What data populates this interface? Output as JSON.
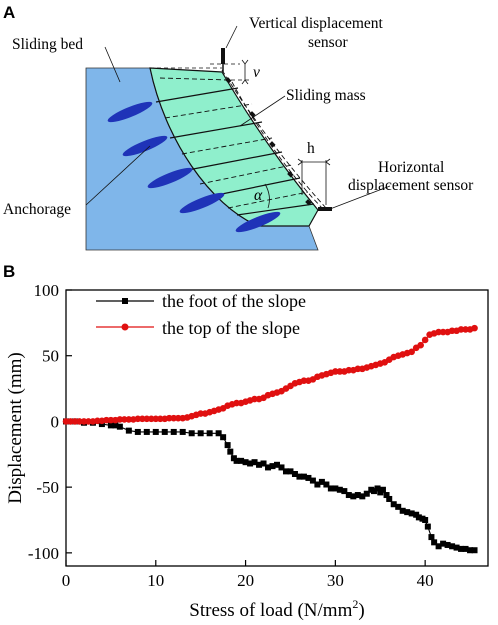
{
  "panel_a": {
    "letter": "A",
    "labels": {
      "sliding_bed": "Sliding bed",
      "vertical_sensor_line1": "Vertical displacement",
      "vertical_sensor_line2": "sensor",
      "v": "v",
      "sliding_mass": "Sliding mass",
      "h": "h",
      "horizontal_sensor_line1": "Horizontal",
      "horizontal_sensor_line2": "displacement sensor",
      "anchorage": "Anchorage",
      "alpha": "α"
    },
    "colors": {
      "bed": "#7fb6ea",
      "mass": "#8fefcc",
      "anchor": "#1f33b8"
    }
  },
  "panel_b": {
    "letter": "B"
  },
  "chart_data": {
    "type": "scatter",
    "xlabel": "Stress of load (N/mm",
    "xlabel_sup": "2",
    "xlabel_end": ")",
    "ylabel": "Displacement (mm)",
    "xlim": [
      0,
      47
    ],
    "ylim": [
      -110,
      100
    ],
    "xticks": [
      0,
      10,
      20,
      30,
      40
    ],
    "yticks": [
      100,
      50,
      0,
      -50,
      -100
    ],
    "legend_position": "top-left",
    "series": [
      {
        "name": "the foot of the slope",
        "color": "#000000",
        "marker": "square",
        "x": [
          0,
          1,
          2,
          3,
          4,
          5,
          5.5,
          6,
          7,
          8,
          9,
          10,
          11,
          12,
          13,
          14,
          15,
          16,
          17,
          17.5,
          18,
          18.3,
          18.7,
          19,
          19.5,
          20,
          20.5,
          21,
          21.5,
          22,
          22.5,
          23,
          23.5,
          24,
          24.5,
          25,
          25.5,
          26,
          26.5,
          27,
          27.5,
          28,
          28.5,
          29,
          29.5,
          30,
          30.5,
          31,
          31.5,
          32,
          32.5,
          33,
          33.5,
          34,
          34.3,
          34.7,
          35,
          35.3,
          35.7,
          36,
          36.5,
          37,
          37.5,
          38,
          38.5,
          39,
          39.3,
          39.7,
          40,
          40.3,
          40.7,
          41,
          41.5,
          42,
          42.5,
          43,
          43.5,
          44,
          44.5,
          45,
          45.5
        ],
        "y": [
          0,
          0,
          -1,
          -1,
          -2,
          -3,
          -3,
          -4,
          -7,
          -8,
          -8,
          -8,
          -8,
          -8,
          -8,
          -9,
          -9,
          -9,
          -9,
          -12,
          -18,
          -23,
          -28,
          -30,
          -30,
          -31,
          -32,
          -31,
          -33,
          -32,
          -35,
          -34,
          -33,
          -35,
          -38,
          -38,
          -40,
          -42,
          -42,
          -43,
          -45,
          -48,
          -46,
          -48,
          -51,
          -51,
          -52,
          -53,
          -56,
          -57,
          -56,
          -57,
          -55,
          -52,
          -53,
          -51,
          -54,
          -52,
          -56,
          -59,
          -63,
          -65,
          -68,
          -69,
          -70,
          -71,
          -73,
          -74,
          -75,
          -80,
          -88,
          -92,
          -95,
          -93,
          -94,
          -95,
          -96,
          -97,
          -97,
          -98,
          -98
        ]
      },
      {
        "name": "the top of the slope",
        "color": "#e01010",
        "marker": "circle",
        "x": [
          0,
          0.5,
          1,
          1.5,
          2,
          2.5,
          3,
          3.5,
          4,
          4.5,
          5,
          5.5,
          6,
          6.5,
          7,
          7.5,
          8,
          8.5,
          9,
          9.5,
          10,
          10.5,
          11,
          11.5,
          12,
          12.5,
          13,
          13.5,
          14,
          14.5,
          15,
          15.5,
          16,
          16.5,
          17,
          17.5,
          18,
          18.5,
          19,
          19.5,
          20,
          20.5,
          21,
          21.5,
          22,
          22.5,
          23,
          23.5,
          24,
          24.5,
          25,
          25.5,
          26,
          26.5,
          27,
          27.5,
          28,
          28.5,
          29,
          29.5,
          30,
          30.5,
          31,
          31.5,
          32,
          32.5,
          33,
          33.5,
          34,
          34.5,
          35,
          35.5,
          36,
          36.5,
          37,
          37.5,
          38,
          38.5,
          39,
          39.5,
          40,
          40.5,
          41,
          41.5,
          42,
          42.5,
          43,
          43.5,
          44,
          44.5,
          45,
          45.5
        ],
        "y": [
          0,
          0,
          0,
          0,
          0,
          0,
          0,
          0.5,
          0.5,
          1,
          1,
          1,
          1.5,
          1.5,
          1.5,
          1.5,
          2,
          2,
          2,
          2,
          2,
          2,
          2,
          2.5,
          2.5,
          2.5,
          2.5,
          3,
          4,
          5,
          6,
          6,
          7,
          8,
          9,
          10,
          12,
          13,
          14,
          14,
          15,
          16,
          17,
          17,
          18,
          20,
          21,
          22,
          23,
          25,
          27,
          29,
          30,
          31,
          31,
          32,
          34,
          35,
          36,
          37,
          38,
          38,
          38,
          39,
          39,
          40,
          40,
          41,
          42,
          43,
          44,
          45,
          47,
          49,
          50,
          51,
          52,
          53,
          56,
          58,
          62,
          66,
          67,
          68,
          68,
          68,
          69,
          69,
          70,
          70,
          70,
          71
        ]
      }
    ]
  }
}
